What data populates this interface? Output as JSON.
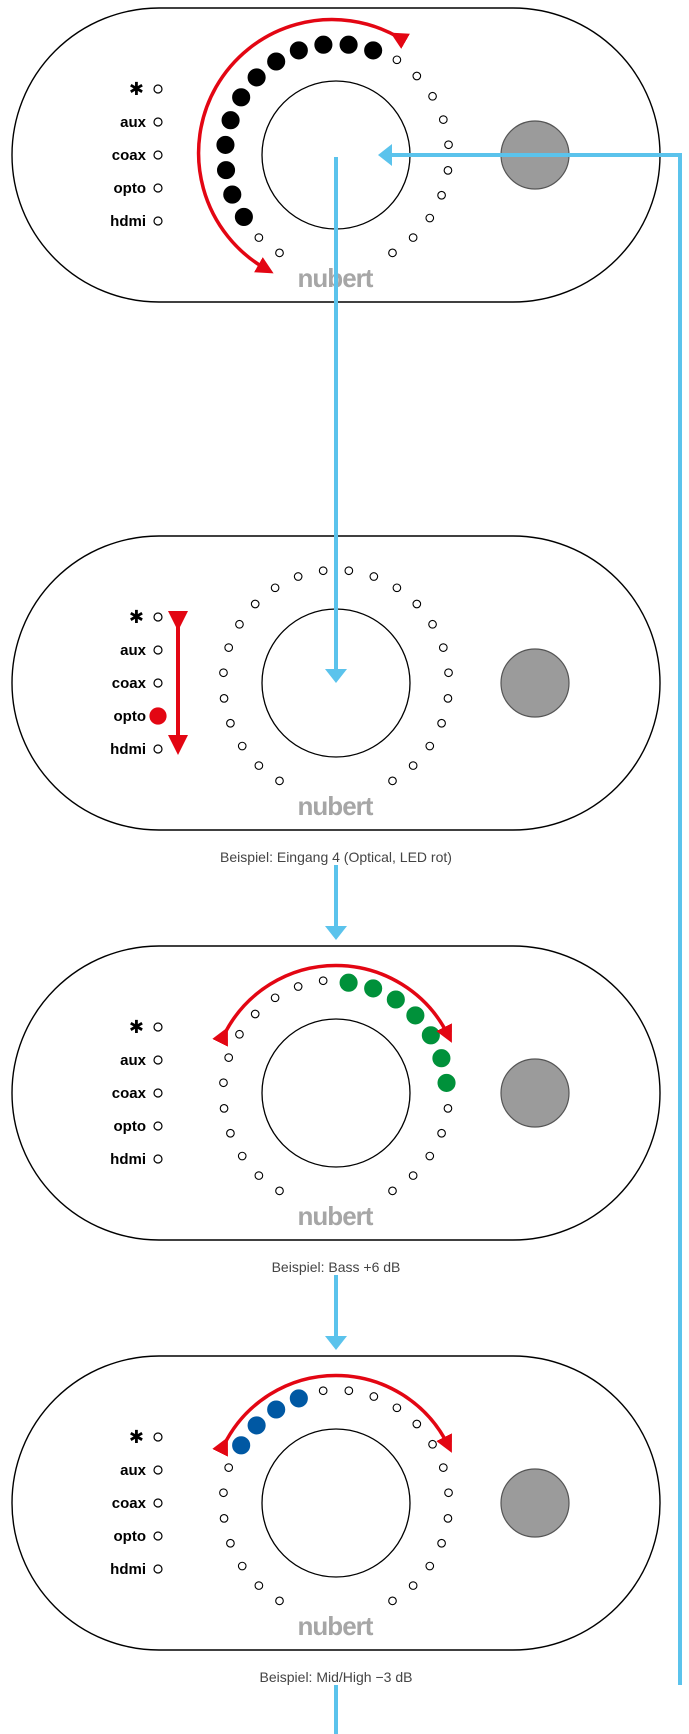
{
  "inputs": [
    {
      "label": "bluetooth"
    },
    {
      "label": "aux"
    },
    {
      "label": "coax"
    },
    {
      "label": "opto"
    },
    {
      "label": "hdmi"
    }
  ],
  "brand": "nubert",
  "bt_symbol": "✱",
  "panels": [
    {
      "id": "input-select",
      "arc": "left",
      "filled_leds": 12,
      "led_color": "#000000",
      "selected_input": null,
      "caption": ""
    },
    {
      "id": "input-indicator",
      "arc": "none",
      "filled_leds": 0,
      "led_color": "#000000",
      "selected_input": "opto",
      "selected_color": "#e30613",
      "vertical_arrow": true,
      "caption": "Beispiel: Eingang 4 (Optical, LED rot)"
    },
    {
      "id": "bass",
      "arc": "top",
      "filled_leds": 7,
      "led_color": "#00913a",
      "selected_input": null,
      "caption": "Beispiel: Bass +6 dB"
    },
    {
      "id": "mid-high",
      "arc": "top",
      "filled_leds": 4,
      "led_color": "#0058a3",
      "selected_input": null,
      "caption": "Beispiel: Mid/High −3 dB"
    }
  ],
  "colors": {
    "flow": "#5bc3ec",
    "arc": "#e30613",
    "button": "#9b9b9b",
    "led_outline": "#000000"
  }
}
